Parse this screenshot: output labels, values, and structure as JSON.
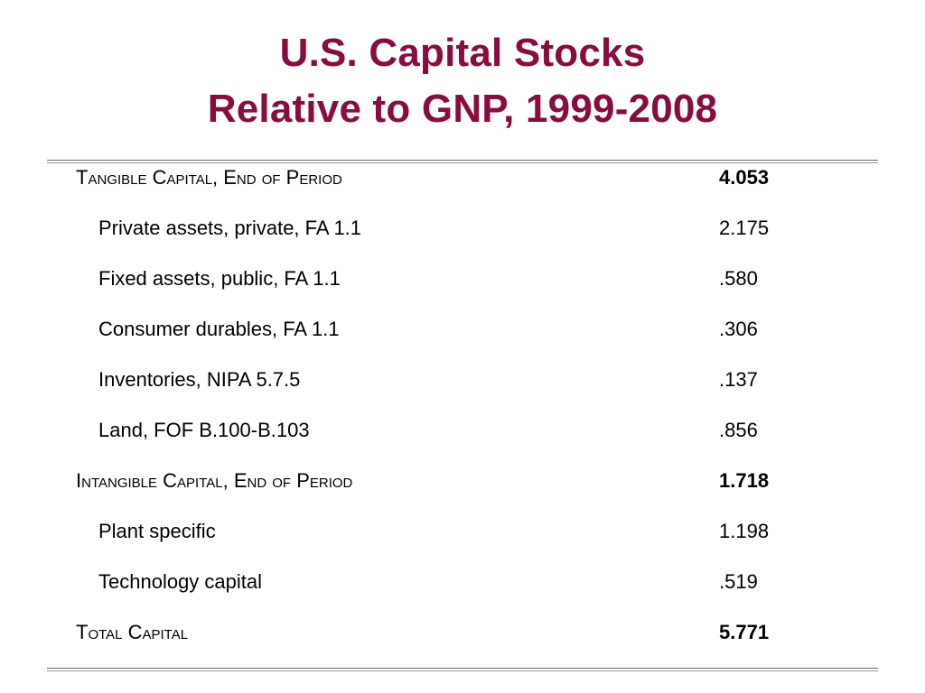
{
  "slide": {
    "title_line1": "U.S. Capital Stocks",
    "title_line2": "Relative to GNP, 1999-2008"
  },
  "table": {
    "rows": [
      {
        "label": "Tangible Capital, End of Period",
        "value": "4.053",
        "kind": "section"
      },
      {
        "label": "Private assets, private, FA 1.1",
        "value": "2.175",
        "kind": "item"
      },
      {
        "label": "Fixed assets, public, FA 1.1",
        "value": ".580",
        "kind": "item"
      },
      {
        "label": "Consumer durables, FA 1.1",
        "value": ".306",
        "kind": "item"
      },
      {
        "label": "Inventories, NIPA 5.7.5",
        "value": ".137",
        "kind": "item"
      },
      {
        "label": "Land, FOF B.100-B.103",
        "value": ".856",
        "kind": "item"
      },
      {
        "label": "Intangible Capital, End of Period",
        "value": "1.718",
        "kind": "section"
      },
      {
        "label": "Plant specific",
        "value": "1.198",
        "kind": "item"
      },
      {
        "label": "Technology capital",
        "value": ".519",
        "kind": "item"
      },
      {
        "label": "Total Capital",
        "value": "5.771",
        "kind": "section"
      }
    ]
  },
  "colors": {
    "title": "#8a0b40",
    "text": "#000000",
    "rule": "#666666"
  }
}
